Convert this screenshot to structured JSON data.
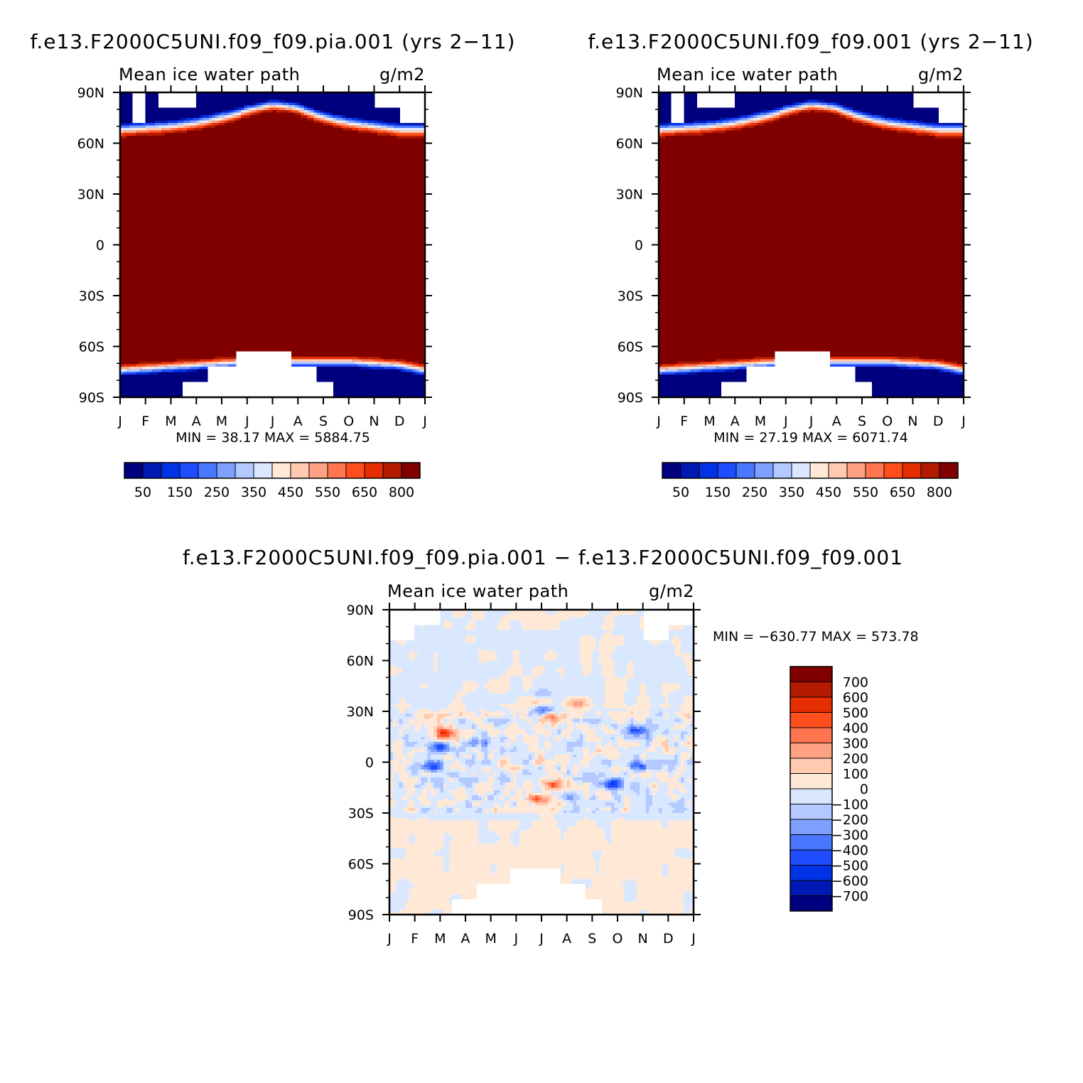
{
  "panels": [
    {
      "id": "pia",
      "main_title": "f.e13.F2000C5UNI.f09_f09.pia.001 (yrs 2−11)",
      "left_title": "Mean ice water path",
      "right_title": "g/m2",
      "minmax": "MIN =   38.17 MAX = 5884.75",
      "kind": "absolute",
      "pole_gap_n_days": [
        [
          15,
          15,
          2
        ],
        [
          46,
          45,
          1
        ],
        [
          305,
          30,
          1
        ],
        [
          335,
          30,
          2
        ]
      ],
      "pole_gap_s_days": [
        [
          75,
          30,
          1
        ],
        [
          105,
          34,
          2
        ],
        [
          139,
          66,
          3
        ],
        [
          205,
          30,
          2
        ],
        [
          235,
          20,
          1
        ]
      ]
    },
    {
      "id": "ctrl",
      "main_title": "f.e13.F2000C5UNI.f09_f09.001 (yrs 2−11)",
      "left_title": "Mean ice water path",
      "right_title": "g/m2",
      "minmax": "MIN =   27.19 MAX = 6071.74",
      "kind": "absolute",
      "pole_gap_n_days": [
        [
          15,
          15,
          2
        ],
        [
          46,
          45,
          1
        ],
        [
          305,
          30,
          1
        ],
        [
          335,
          30,
          2
        ]
      ],
      "pole_gap_s_days": [
        [
          75,
          30,
          1
        ],
        [
          105,
          34,
          2
        ],
        [
          139,
          66,
          3
        ],
        [
          205,
          30,
          2
        ],
        [
          235,
          20,
          1
        ]
      ]
    },
    {
      "id": "diff",
      "main_title": "f.e13.F2000C5UNI.f09_f09.pia.001 − f.e13.F2000C5UNI.f09_f09.001",
      "left_title": "Mean ice water path",
      "right_title": "g/m2",
      "minmax": "MIN = −630.77 MAX = 573.78",
      "kind": "difference"
    }
  ],
  "axes": {
    "x_ticks": [
      "J",
      "F",
      "M",
      "A",
      "M",
      "J",
      "J",
      "A",
      "S",
      "O",
      "N",
      "D",
      "J"
    ],
    "y_ticks": [
      "90N",
      "60N",
      "30N",
      "0",
      "30S",
      "60S",
      "90S"
    ],
    "y_values": [
      90,
      60,
      30,
      0,
      -30,
      -60,
      -90
    ],
    "ylim": [
      -90,
      90
    ],
    "xlim_months": [
      0,
      12
    ]
  },
  "colorbar_abs": {
    "levels": [
      "50",
      "150",
      "250",
      "350",
      "450",
      "550",
      "650",
      "800"
    ],
    "colors": [
      "#00007f",
      "#0019b3",
      "#0033e6",
      "#1f4cff",
      "#4a77ff",
      "#7fa0ff",
      "#b3c9ff",
      "#d9e8ff",
      "#ffe9d6",
      "#ffcab0",
      "#ffa183",
      "#ff7550",
      "#ff4e1e",
      "#e62e00",
      "#b31a00",
      "#800000"
    ]
  },
  "colorbar_diff": {
    "levels": [
      "700",
      "600",
      "500",
      "400",
      "300",
      "200",
      "100",
      "0",
      "−100",
      "−200",
      "−300",
      "−400",
      "−500",
      "−600",
      "−700"
    ],
    "colors": [
      "#800000",
      "#b31a00",
      "#e62e00",
      "#ff4e1e",
      "#ff7550",
      "#ffa183",
      "#ffcab0",
      "#ffe9d6",
      "#d9e8ff",
      "#b3c9ff",
      "#7fa0ff",
      "#4a77ff",
      "#1f4cff",
      "#0033e6",
      "#0019b3",
      "#00007f"
    ]
  },
  "chart_data": [
    {
      "type": "heatmap",
      "title": "f.e13.F2000C5UNI.f09_f09.pia.001 (yrs 2−11)",
      "subtitle": "Mean ice water path",
      "units": "g/m2",
      "x": [
        "J",
        "F",
        "M",
        "A",
        "M",
        "J",
        "J",
        "A",
        "S",
        "O",
        "N",
        "D",
        "J"
      ],
      "y": [
        "90N",
        "60N",
        "30N",
        "0",
        "30S",
        "60S",
        "90S"
      ],
      "ylim": [
        -90,
        90
      ],
      "min": 38.17,
      "max": 5884.75,
      "nh_edge_lat_by_month": [
        63,
        64,
        65,
        67,
        70,
        73,
        75,
        74,
        70,
        67,
        65,
        63,
        63
      ],
      "sh_edge_lat_by_month": [
        -70,
        -69,
        -68,
        -67,
        -66,
        -65,
        -65,
        -65,
        -65,
        -65,
        -66,
        -67,
        -70
      ],
      "contour_levels": [
        50,
        100,
        150,
        200,
        250,
        300,
        350,
        400,
        450,
        500,
        550,
        600,
        650,
        700,
        800
      ]
    },
    {
      "type": "heatmap",
      "title": "f.e13.F2000C5UNI.f09_f09.001 (yrs 2−11)",
      "subtitle": "Mean ice water path",
      "units": "g/m2",
      "x": [
        "J",
        "F",
        "M",
        "A",
        "M",
        "J",
        "J",
        "A",
        "S",
        "O",
        "N",
        "D",
        "J"
      ],
      "y": [
        "90N",
        "60N",
        "30N",
        "0",
        "30S",
        "60S",
        "90S"
      ],
      "ylim": [
        -90,
        90
      ],
      "min": 27.19,
      "max": 6071.74,
      "nh_edge_lat_by_month": [
        63,
        64,
        65,
        67,
        70,
        73,
        75,
        74,
        70,
        67,
        65,
        63,
        63
      ],
      "sh_edge_lat_by_month": [
        -70,
        -69,
        -68,
        -67,
        -66,
        -65,
        -65,
        -65,
        -65,
        -65,
        -66,
        -67,
        -70
      ],
      "contour_levels": [
        50,
        100,
        150,
        200,
        250,
        300,
        350,
        400,
        450,
        500,
        550,
        600,
        650,
        700,
        800
      ]
    },
    {
      "type": "heatmap",
      "title": "f.e13.F2000C5UNI.f09_f09.pia.001 − f.e13.F2000C5UNI.f09_f09.001",
      "subtitle": "Mean ice water path",
      "units": "g/m2",
      "x": [
        "J",
        "F",
        "M",
        "A",
        "M",
        "J",
        "J",
        "A",
        "S",
        "O",
        "N",
        "D",
        "J"
      ],
      "y": [
        "90N",
        "60N",
        "30N",
        "0",
        "30S",
        "60S",
        "90S"
      ],
      "ylim": [
        -90,
        90
      ],
      "min": -630.77,
      "max": 573.78,
      "contour_levels": [
        -700,
        -600,
        -500,
        -400,
        -300,
        -200,
        -100,
        0,
        100,
        200,
        300,
        400,
        500,
        600,
        700
      ],
      "anomalies": [
        {
          "month": 2.2,
          "lat": 17,
          "value": 450
        },
        {
          "month": 6.4,
          "lat": 26,
          "value": 400
        },
        {
          "month": 5.9,
          "lat": 36,
          "value": 250
        },
        {
          "month": 6.5,
          "lat": -13,
          "value": 450
        },
        {
          "month": 5.9,
          "lat": -22,
          "value": 400
        },
        {
          "month": 7.4,
          "lat": 35,
          "value": 300
        },
        {
          "month": 2.0,
          "lat": 8,
          "value": -420
        },
        {
          "month": 1.7,
          "lat": -2,
          "value": -380
        },
        {
          "month": 9.7,
          "lat": 19,
          "value": -420
        },
        {
          "month": 9.8,
          "lat": -2,
          "value": -380
        },
        {
          "month": 8.8,
          "lat": -13,
          "value": -420
        },
        {
          "month": 7.2,
          "lat": -20,
          "value": -250
        },
        {
          "month": 6.0,
          "lat": 40,
          "value": -150
        },
        {
          "month": 3.6,
          "lat": 12,
          "value": -280
        },
        {
          "month": 6.1,
          "lat": 31,
          "value": -300
        }
      ]
    }
  ]
}
